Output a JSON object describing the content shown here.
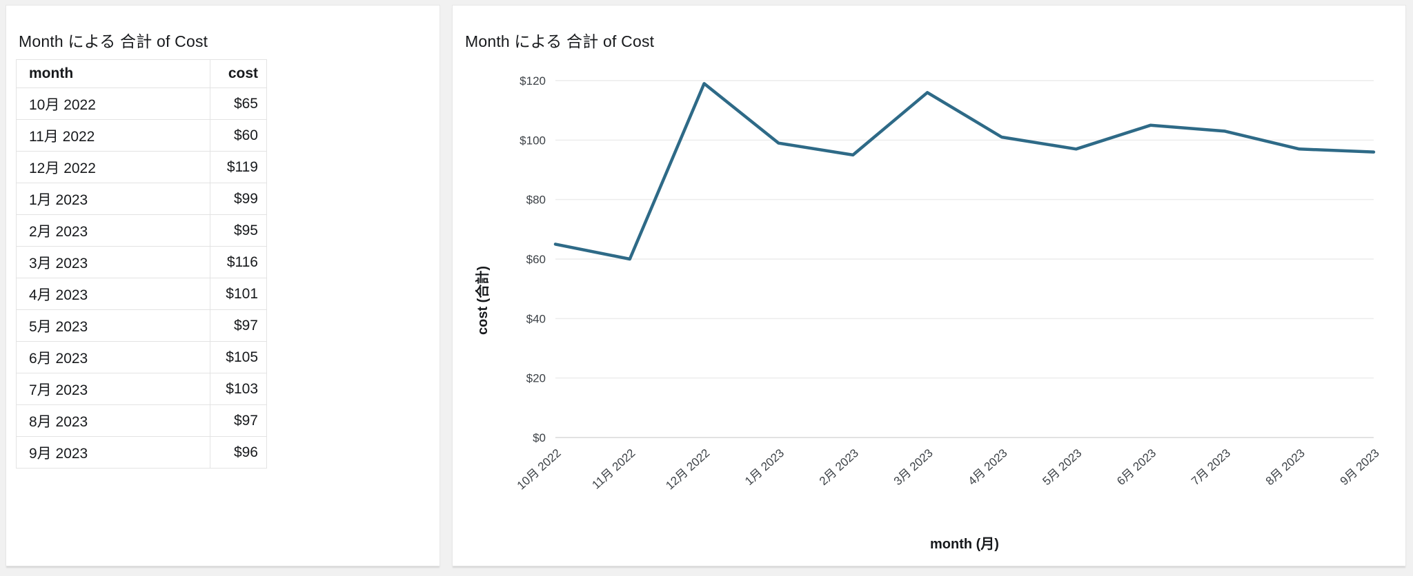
{
  "table_visual": {
    "title": "Month による 合計 of Cost",
    "columns": [
      "month",
      "cost"
    ],
    "rows": [
      [
        "10月 2022",
        "$65"
      ],
      [
        "11月 2022",
        "$60"
      ],
      [
        "12月 2022",
        "$119"
      ],
      [
        "1月 2023",
        "$99"
      ],
      [
        "2月 2023",
        "$95"
      ],
      [
        "3月 2023",
        "$116"
      ],
      [
        "4月 2023",
        "$101"
      ],
      [
        "5月 2023",
        "$97"
      ],
      [
        "6月 2023",
        "$105"
      ],
      [
        "7月 2023",
        "$103"
      ],
      [
        "8月 2023",
        "$97"
      ],
      [
        "9月 2023",
        "$96"
      ]
    ]
  },
  "chart_visual": {
    "title": "Month による 合計 of Cost"
  },
  "chart_data": {
    "type": "line",
    "title": "Month による 合計 of Cost",
    "x": [
      "10月 2022",
      "11月 2022",
      "12月 2022",
      "1月 2023",
      "2月 2023",
      "3月 2023",
      "4月 2023",
      "5月 2023",
      "6月 2023",
      "7月 2023",
      "8月 2023",
      "9月 2023"
    ],
    "series": [
      {
        "name": "cost",
        "values": [
          65,
          60,
          119,
          99,
          95,
          116,
          101,
          97,
          105,
          103,
          97,
          96
        ]
      }
    ],
    "xlabel": "month (月)",
    "ylabel": "cost (合計)",
    "ylim": [
      0,
      120
    ],
    "ytick_values": [
      0,
      20,
      40,
      60,
      80,
      100,
      120
    ],
    "ytick_labels": [
      "$0",
      "$20",
      "$40",
      "$60",
      "$80",
      "$100",
      "$120"
    ],
    "grid": true,
    "legend": "none",
    "line_color": "#2e6a87",
    "grid_color": "#ececec",
    "zero_line_color": "#d8d8d8"
  }
}
